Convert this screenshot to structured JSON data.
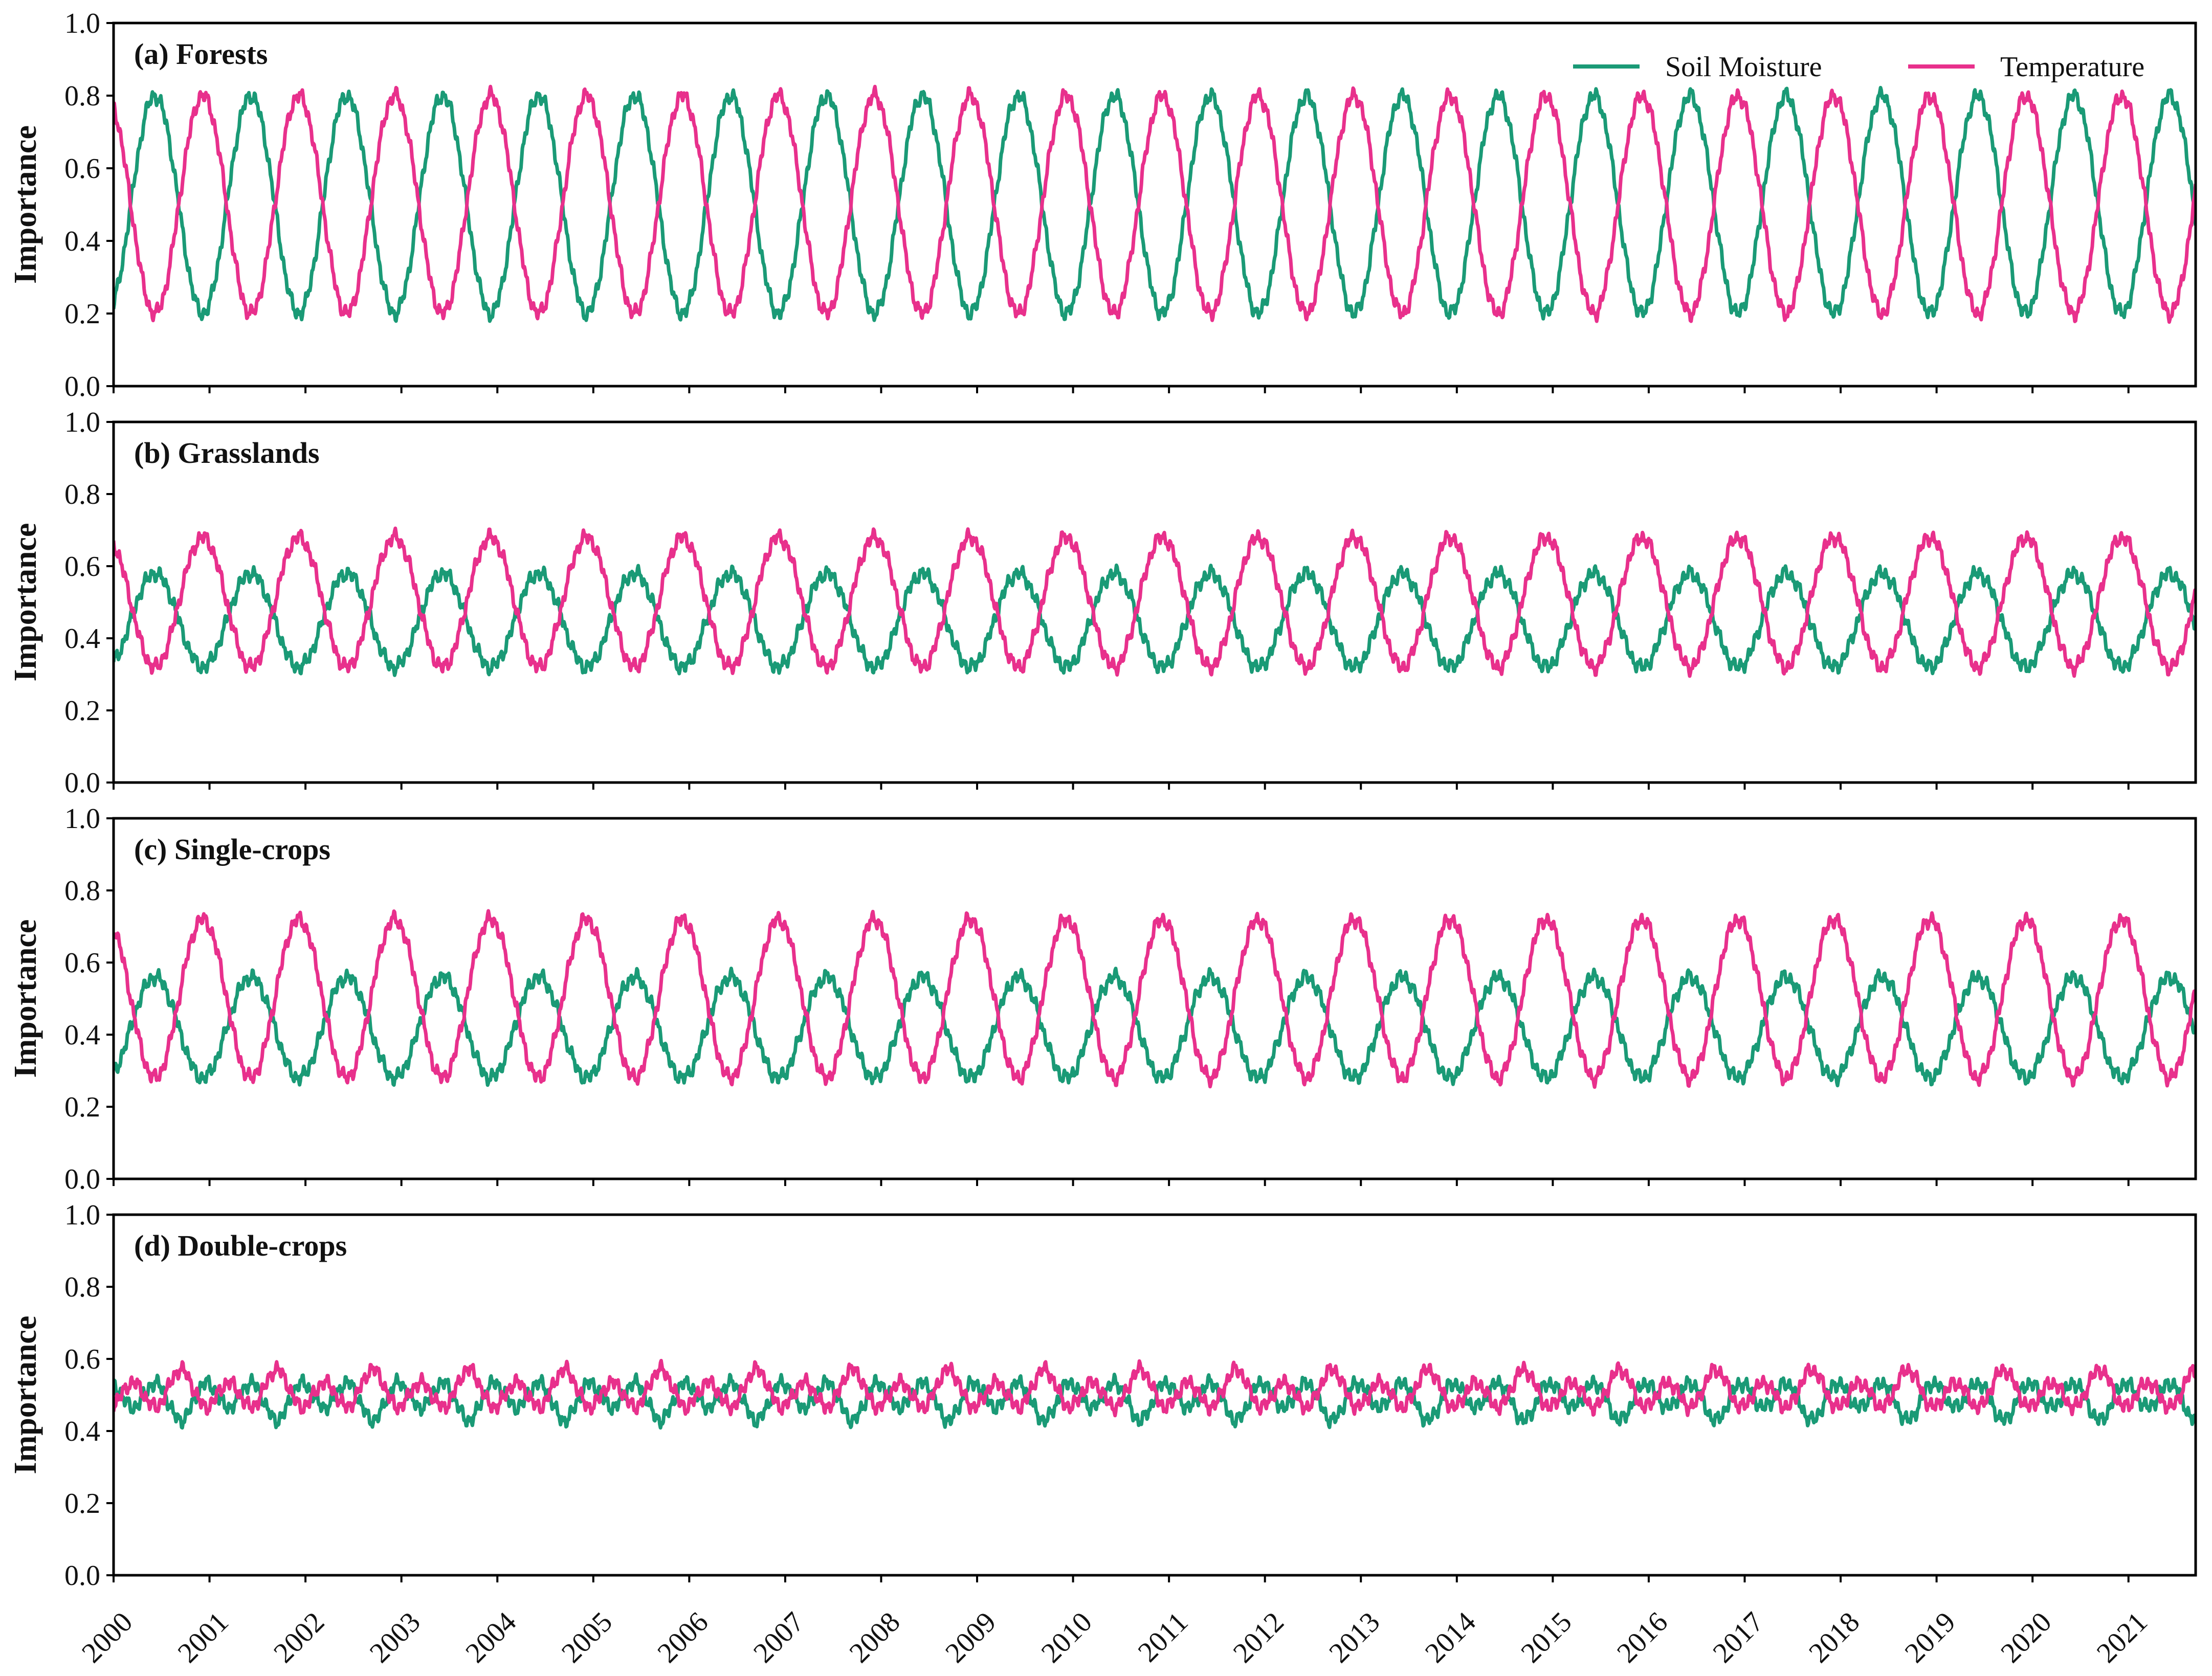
{
  "chart_data": {
    "type": "line",
    "x_ticks": [
      "2000",
      "2001",
      "2002",
      "2003",
      "2004",
      "2005",
      "2006",
      "2007",
      "2008",
      "2009",
      "2010",
      "2011",
      "2012",
      "2013",
      "2014",
      "2015",
      "2016",
      "2017",
      "2018",
      "2019",
      "2020",
      "2021"
    ],
    "xlim": [
      2000,
      2021.7
    ],
    "y_ticks": [
      "0.0",
      "0.2",
      "0.4",
      "0.6",
      "0.8",
      "1.0"
    ],
    "ylim": [
      0,
      1
    ],
    "ylabel": "Importance",
    "grid": false,
    "legend": {
      "placement": "top-right",
      "entries": [
        {
          "name": "Soil Moisture",
          "color": "#1a9a76"
        },
        {
          "name": "Temperature",
          "color": "#e8308c"
        }
      ]
    },
    "panels": [
      {
        "title": "(a) Forests",
        "temperature": {
          "mean": 0.5,
          "amplitude": 0.3,
          "peak_phase": 0.93
        },
        "soil_moisture": {
          "mean": 0.5,
          "amplitude": 0.3,
          "trough_phase": 0.93
        }
      },
      {
        "title": "(b) Grasslands",
        "temperature": {
          "mean": 0.5,
          "amplitude": 0.18,
          "peak_phase": 0.93
        },
        "soil_moisture": {
          "mean": 0.45,
          "amplitude": 0.13,
          "trough_phase": 0.93
        }
      },
      {
        "title": "(c) Single-crops",
        "temperature": {
          "mean": 0.5,
          "amplitude": 0.22,
          "peak_phase": 0.93
        },
        "soil_moisture": {
          "mean": 0.42,
          "amplitude": 0.14,
          "trough_phase": 0.93
        }
      },
      {
        "title": "(d) Double-crops",
        "temperature": {
          "mean": 0.51,
          "amplitude": 0.06,
          "peak_phase": 0.7
        },
        "soil_moisture": {
          "mean": 0.49,
          "amplitude": 0.06,
          "trough_phase": 0.7
        }
      }
    ]
  }
}
